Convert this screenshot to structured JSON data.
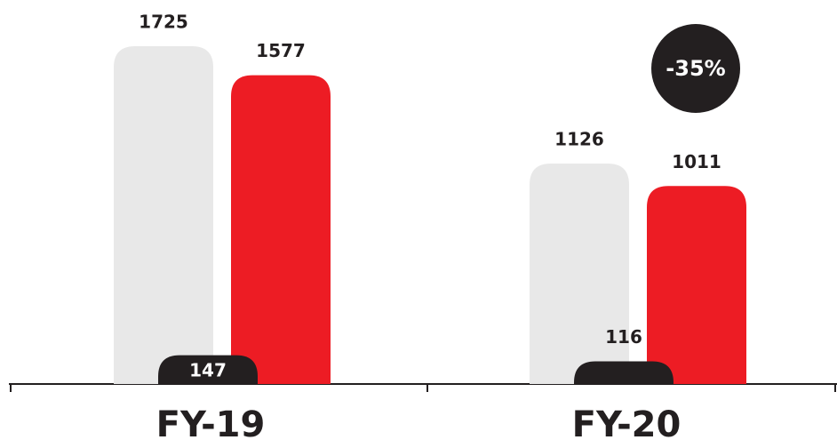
{
  "chart_data": {
    "type": "bar",
    "categories": [
      "FY-19",
      "FY-20"
    ],
    "series": [
      {
        "color": "#e8e8e8",
        "values": [
          1725,
          1126
        ]
      },
      {
        "color": "#ed1c24",
        "values": [
          1577,
          1011
        ]
      },
      {
        "color": "#231f20",
        "values": [
          147,
          116
        ]
      }
    ],
    "annotations": [
      {
        "text": "-35%",
        "color": "#231f20"
      }
    ]
  }
}
